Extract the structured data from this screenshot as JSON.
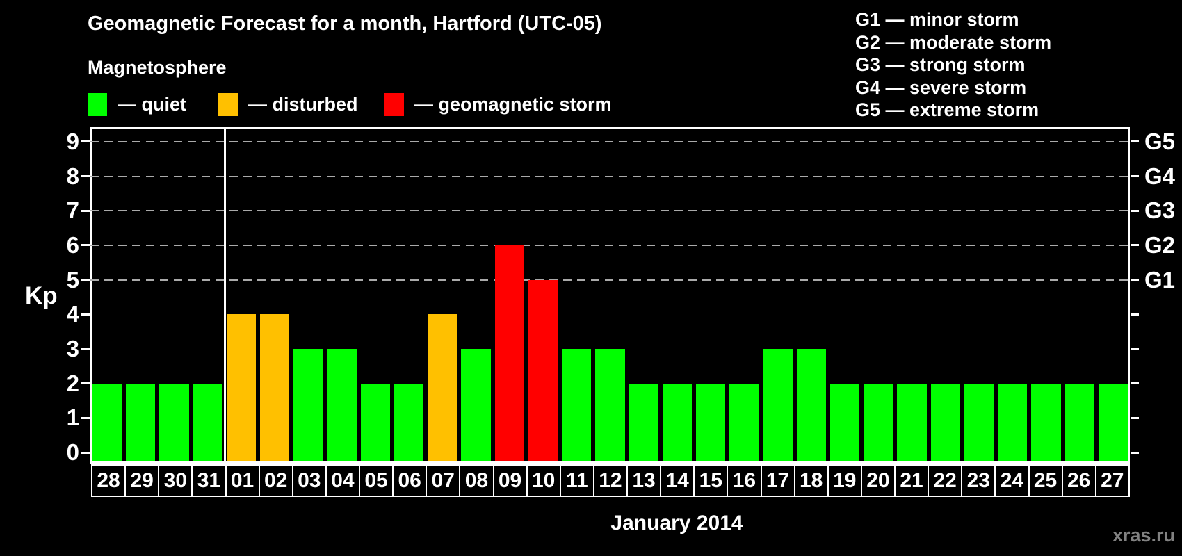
{
  "header": {
    "title": "Geomagnetic Forecast for a month, Hartford (UTC-05)",
    "subtitle": "Magnetosphere"
  },
  "legend": [
    {
      "key": "quiet",
      "label": "— quiet"
    },
    {
      "key": "disturbed",
      "label": "— disturbed"
    },
    {
      "key": "storm",
      "label": "— geomagnetic storm"
    }
  ],
  "g_legend": [
    "G1 — minor storm",
    "G2 — moderate storm",
    "G3 — strong storm",
    "G4 — severe storm",
    "G5 — extreme storm"
  ],
  "colors": {
    "quiet": "#00ff00",
    "disturbed": "#ffc000",
    "storm": "#ff0000",
    "gridline": "#aaaaaa"
  },
  "axis": {
    "y_label": "Kp"
  },
  "footer": {
    "month_label": "January 2014",
    "watermark": "xras.ru"
  },
  "chart_data": {
    "type": "bar",
    "title": "Geomagnetic Forecast for a month, Hartford (UTC-05)",
    "xlabel": "January 2014",
    "ylabel": "Kp",
    "ylim": [
      -0.32,
      9.42
    ],
    "categories": [
      "28",
      "29",
      "30",
      "31",
      "01",
      "02",
      "03",
      "04",
      "05",
      "06",
      "07",
      "08",
      "09",
      "10",
      "11",
      "12",
      "13",
      "14",
      "15",
      "16",
      "17",
      "18",
      "19",
      "20",
      "21",
      "22",
      "23",
      "24",
      "25",
      "26",
      "27"
    ],
    "values": [
      2,
      2,
      2,
      2,
      4,
      4,
      3,
      3,
      2,
      2,
      4,
      3,
      6,
      5,
      3,
      3,
      2,
      2,
      2,
      2,
      3,
      3,
      2,
      2,
      2,
      2,
      2,
      2,
      2,
      2,
      2
    ],
    "status": [
      "quiet",
      "quiet",
      "quiet",
      "quiet",
      "disturbed",
      "disturbed",
      "quiet",
      "quiet",
      "quiet",
      "quiet",
      "disturbed",
      "quiet",
      "storm",
      "storm",
      "quiet",
      "quiet",
      "quiet",
      "quiet",
      "quiet",
      "quiet",
      "quiet",
      "quiet",
      "quiet",
      "quiet",
      "quiet",
      "quiet",
      "quiet",
      "quiet",
      "quiet",
      "quiet",
      "quiet"
    ],
    "kp_ticks": [
      0,
      1,
      2,
      3,
      4,
      5,
      6,
      7,
      8,
      9
    ],
    "gridlines": [
      5,
      6,
      7,
      8,
      9
    ],
    "right_axis": [
      {
        "kp": 5,
        "label": "G1"
      },
      {
        "kp": 6,
        "label": "G2"
      },
      {
        "kp": 7,
        "label": "G3"
      },
      {
        "kp": 8,
        "label": "G4"
      },
      {
        "kp": 9,
        "label": "G5"
      }
    ],
    "month_boundary_index": 4
  }
}
